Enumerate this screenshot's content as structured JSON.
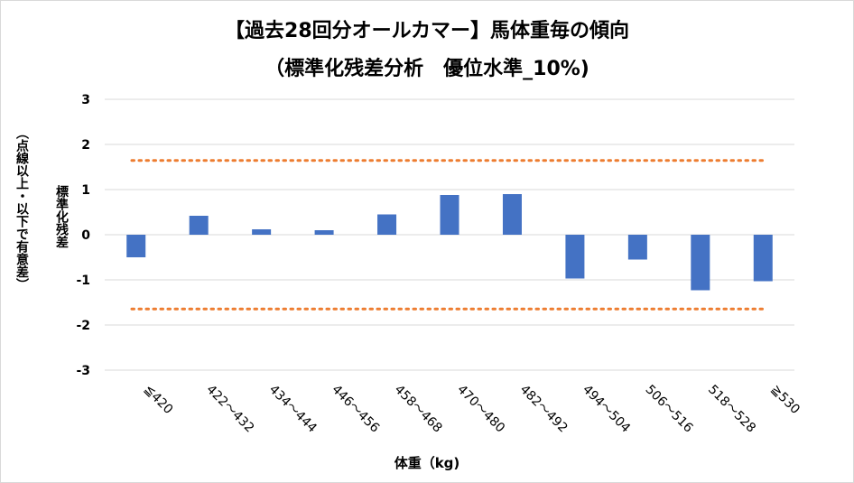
{
  "chart_data": {
    "type": "bar",
    "title": "【過去28回分オールカマー】馬体重毎の傾向",
    "subtitle": "（標準化残差分析　優位水準_10%)",
    "xlabel": "体重（kg)",
    "ylabel_main": "標準化残差",
    "ylabel_note": "（点線以上・以下で有意差）",
    "categories": [
      "≦420",
      "422～432",
      "434～444",
      "446～456",
      "458～468",
      "470～480",
      "482～492",
      "494～504",
      "506～516",
      "518～528",
      "≧530"
    ],
    "values": [
      -0.5,
      0.42,
      0.12,
      0.1,
      0.45,
      0.88,
      0.9,
      -0.97,
      -0.55,
      -1.23,
      -1.03
    ],
    "ylim": [
      -3,
      3
    ],
    "yticks": [
      3,
      2,
      1,
      0,
      -1,
      -2,
      -3
    ],
    "threshold_upper": 1.645,
    "threshold_lower": -1.645,
    "grid": true,
    "colors": {
      "bar": "#4472c4",
      "threshold": "#ed7d31",
      "grid": "#d9d9d9"
    }
  }
}
